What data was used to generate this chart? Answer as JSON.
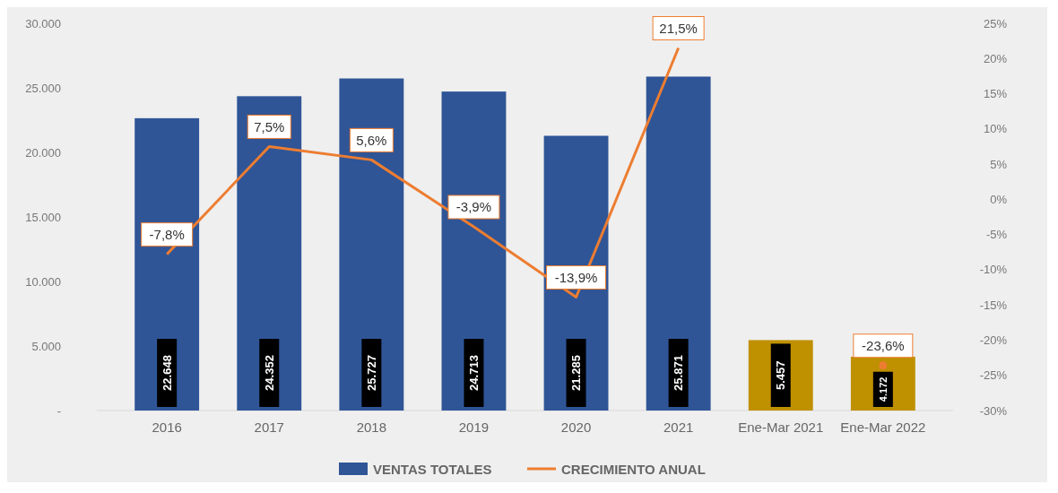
{
  "chart_data": {
    "type": "bar",
    "categories": [
      "2016",
      "2017",
      "2018",
      "2019",
      "2020",
      "2021",
      "Ene-Mar 2021",
      "Ene-Mar 2022"
    ],
    "series": [
      {
        "name": "VENTAS TOTALES",
        "color": "#2f5597",
        "colors": [
          "#2f5597",
          "#2f5597",
          "#2f5597",
          "#2f5597",
          "#2f5597",
          "#2f5597",
          "#bf9000",
          "#bf9000"
        ],
        "values": [
          22648,
          24352,
          25727,
          24713,
          21285,
          25871,
          5457,
          4172
        ],
        "value_labels": [
          "22.648",
          "24.352",
          "25.727",
          "24.713",
          "21.285",
          "25.871",
          "5.457",
          "4.172"
        ]
      },
      {
        "name": "CRECIMIENTO ANUAL",
        "type": "line",
        "axis": "y2",
        "color": "#ed7d31",
        "values": [
          -7.8,
          7.5,
          5.6,
          -3.9,
          -13.9,
          21.5,
          null,
          -23.6
        ],
        "value_labels": [
          "-7,8%",
          "7,5%",
          "5,6%",
          "-3,9%",
          "-13,9%",
          "21,5%",
          null,
          "-23,6%"
        ]
      }
    ],
    "ylim": [
      0,
      30000
    ],
    "yticks": [
      {
        "value": 0,
        "label": "-"
      },
      {
        "value": 5000,
        "label": "5.000"
      },
      {
        "value": 10000,
        "label": "10.000"
      },
      {
        "value": 15000,
        "label": "15.000"
      },
      {
        "value": 20000,
        "label": "20.000"
      },
      {
        "value": 25000,
        "label": "25.000"
      },
      {
        "value": 30000,
        "label": "30.000"
      }
    ],
    "y2lim": [
      -30,
      25
    ],
    "y2ticks": [
      {
        "value": -30,
        "label": "-30%"
      },
      {
        "value": -25,
        "label": "-25%"
      },
      {
        "value": -20,
        "label": "-20%"
      },
      {
        "value": -15,
        "label": "-15%"
      },
      {
        "value": -10,
        "label": "-10%"
      },
      {
        "value": -5,
        "label": "-5%"
      },
      {
        "value": 0,
        "label": "0%"
      },
      {
        "value": 5,
        "label": "5%"
      },
      {
        "value": 10,
        "label": "10%"
      },
      {
        "value": 15,
        "label": "15%"
      },
      {
        "value": 20,
        "label": "20%"
      },
      {
        "value": 25,
        "label": "25%"
      }
    ],
    "grid": false,
    "legend": "bottom"
  }
}
